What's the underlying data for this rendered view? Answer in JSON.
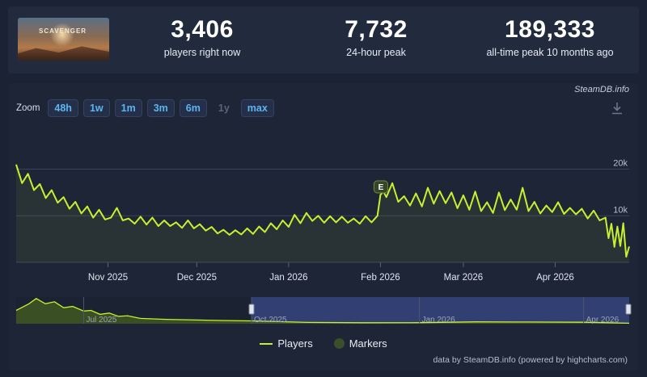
{
  "header": {
    "game_logo_text": "SCAVENGER",
    "stats": [
      {
        "value": "3,406",
        "label": "players right now"
      },
      {
        "value": "7,732",
        "label": "24-hour peak"
      },
      {
        "value": "189,333",
        "label": "all-time peak 10 months ago"
      }
    ]
  },
  "panel": {
    "brand": "SteamDB.info",
    "zoom_label": "Zoom",
    "zoom_buttons": [
      "48h",
      "1w",
      "1m",
      "3m",
      "6m",
      "1y",
      "max"
    ],
    "zoom_disabled": "1y",
    "download_icon": "download-icon",
    "legend": {
      "players": "Players",
      "markers": "Markers"
    },
    "credit": "data by SteamDB.info (powered by highcharts.com)"
  },
  "colors": {
    "series": "#c6f12f",
    "navigator_selection": "#3b4a8a",
    "background": "#1b2233"
  },
  "chart_data": {
    "type": "line",
    "title": "",
    "xlabel": "",
    "ylabel": "",
    "ylim": [
      0,
      22000
    ],
    "y_ticks": [
      {
        "value": 10000,
        "label": "10k"
      },
      {
        "value": 20000,
        "label": "20k"
      }
    ],
    "x_ticks": [
      "Nov 2025",
      "Dec 2025",
      "Jan 2026",
      "Feb 2026",
      "Mar 2026",
      "Apr 2026"
    ],
    "x_tick_dates": [
      "2025-11-01",
      "2025-12-01",
      "2026-01-01",
      "2026-02-01",
      "2026-03-01",
      "2026-04-01"
    ],
    "x_range": [
      "2025-10-01",
      "2026-04-26"
    ],
    "grid": true,
    "marker": {
      "label": "E",
      "date": "2026-02-01"
    },
    "series": [
      {
        "name": "Players",
        "points": [
          [
            "2025-10-01",
            21000
          ],
          [
            "2025-10-03",
            17000
          ],
          [
            "2025-10-05",
            19000
          ],
          [
            "2025-10-07",
            15500
          ],
          [
            "2025-10-09",
            16800
          ],
          [
            "2025-10-11",
            13800
          ],
          [
            "2025-10-13",
            15500
          ],
          [
            "2025-10-15",
            12800
          ],
          [
            "2025-10-17",
            14000
          ],
          [
            "2025-10-19",
            11500
          ],
          [
            "2025-10-21",
            13000
          ],
          [
            "2025-10-23",
            10500
          ],
          [
            "2025-10-25",
            12000
          ],
          [
            "2025-10-27",
            9600
          ],
          [
            "2025-10-29",
            11300
          ],
          [
            "2025-10-31",
            9200
          ],
          [
            "2025-11-02",
            9600
          ],
          [
            "2025-11-04",
            11700
          ],
          [
            "2025-11-06",
            9000
          ],
          [
            "2025-11-08",
            9400
          ],
          [
            "2025-11-10",
            8300
          ],
          [
            "2025-11-12",
            9800
          ],
          [
            "2025-11-14",
            8100
          ],
          [
            "2025-11-16",
            9600
          ],
          [
            "2025-11-18",
            7800
          ],
          [
            "2025-11-20",
            9000
          ],
          [
            "2025-11-22",
            7800
          ],
          [
            "2025-11-24",
            8600
          ],
          [
            "2025-11-26",
            7400
          ],
          [
            "2025-11-28",
            9000
          ],
          [
            "2025-11-30",
            7300
          ],
          [
            "2025-12-02",
            8200
          ],
          [
            "2025-12-04",
            6800
          ],
          [
            "2025-12-06",
            7600
          ],
          [
            "2025-12-08",
            6200
          ],
          [
            "2025-12-10",
            7000
          ],
          [
            "2025-12-12",
            5900
          ],
          [
            "2025-12-14",
            6900
          ],
          [
            "2025-12-16",
            6000
          ],
          [
            "2025-12-18",
            7300
          ],
          [
            "2025-12-20",
            6100
          ],
          [
            "2025-12-22",
            7700
          ],
          [
            "2025-12-24",
            6500
          ],
          [
            "2025-12-26",
            8400
          ],
          [
            "2025-12-28",
            7100
          ],
          [
            "2025-12-30",
            9000
          ],
          [
            "2026-01-01",
            7600
          ],
          [
            "2026-01-03",
            10200
          ],
          [
            "2026-01-05",
            8400
          ],
          [
            "2026-01-07",
            10600
          ],
          [
            "2026-01-09",
            8900
          ],
          [
            "2026-01-11",
            10000
          ],
          [
            "2026-01-13",
            8500
          ],
          [
            "2026-01-15",
            9900
          ],
          [
            "2026-01-17",
            8600
          ],
          [
            "2026-01-19",
            9800
          ],
          [
            "2026-01-21",
            8500
          ],
          [
            "2026-01-23",
            9400
          ],
          [
            "2026-01-25",
            8300
          ],
          [
            "2026-01-27",
            9900
          ],
          [
            "2026-01-29",
            8600
          ],
          [
            "2026-01-31",
            10000
          ],
          [
            "2026-02-01",
            14500
          ],
          [
            "2026-02-02",
            15200
          ],
          [
            "2026-02-03",
            14000
          ],
          [
            "2026-02-05",
            17000
          ],
          [
            "2026-02-07",
            13000
          ],
          [
            "2026-02-09",
            14200
          ],
          [
            "2026-02-11",
            12200
          ],
          [
            "2026-02-13",
            14800
          ],
          [
            "2026-02-15",
            12000
          ],
          [
            "2026-02-17",
            16000
          ],
          [
            "2026-02-19",
            12600
          ],
          [
            "2026-02-21",
            15300
          ],
          [
            "2026-02-23",
            12700
          ],
          [
            "2026-02-25",
            15000
          ],
          [
            "2026-02-27",
            11600
          ],
          [
            "2026-03-01",
            14400
          ],
          [
            "2026-03-03",
            11300
          ],
          [
            "2026-03-05",
            15200
          ],
          [
            "2026-03-07",
            11000
          ],
          [
            "2026-03-09",
            12900
          ],
          [
            "2026-03-11",
            10600
          ],
          [
            "2026-03-13",
            15000
          ],
          [
            "2026-03-15",
            11200
          ],
          [
            "2026-03-17",
            13500
          ],
          [
            "2026-03-19",
            11300
          ],
          [
            "2026-03-21",
            16000
          ],
          [
            "2026-03-23",
            11000
          ],
          [
            "2026-03-25",
            13000
          ],
          [
            "2026-03-27",
            10500
          ],
          [
            "2026-03-29",
            12200
          ],
          [
            "2026-03-31",
            10800
          ],
          [
            "2026-04-02",
            12900
          ],
          [
            "2026-04-04",
            10400
          ],
          [
            "2026-04-06",
            11700
          ],
          [
            "2026-04-08",
            10300
          ],
          [
            "2026-04-10",
            11500
          ],
          [
            "2026-04-12",
            9400
          ],
          [
            "2026-04-14",
            11100
          ],
          [
            "2026-04-16",
            9000
          ],
          [
            "2026-04-18",
            9600
          ],
          [
            "2026-04-19",
            5200
          ],
          [
            "2026-04-20",
            8300
          ],
          [
            "2026-04-21",
            3300
          ],
          [
            "2026-04-22",
            7700
          ],
          [
            "2026-04-23",
            3500
          ],
          [
            "2026-04-24",
            8400
          ],
          [
            "2026-04-25",
            1200
          ],
          [
            "2026-04-26",
            3400
          ]
        ]
      }
    ],
    "navigator": {
      "x_labels": [
        "Jul 2025",
        "Oct 2025",
        "Jan 2026",
        "Apr 2026"
      ],
      "x_label_dates": [
        "2025-07-01",
        "2025-10-01",
        "2026-01-01",
        "2026-04-01"
      ],
      "x_range": [
        "2025-05-25",
        "2026-04-26"
      ],
      "selection": [
        "2025-10-01",
        "2026-04-26"
      ],
      "points": [
        [
          "2025-05-25",
          100000
        ],
        [
          "2025-06-01",
          150000
        ],
        [
          "2025-06-05",
          189333
        ],
        [
          "2025-06-10",
          150000
        ],
        [
          "2025-06-15",
          165000
        ],
        [
          "2025-06-20",
          120000
        ],
        [
          "2025-06-25",
          130000
        ],
        [
          "2025-07-01",
          95000
        ],
        [
          "2025-07-05",
          100000
        ],
        [
          "2025-07-10",
          70000
        ],
        [
          "2025-07-15",
          80000
        ],
        [
          "2025-07-20",
          55000
        ],
        [
          "2025-07-25",
          60000
        ],
        [
          "2025-08-01",
          40000
        ],
        [
          "2025-08-15",
          33000
        ],
        [
          "2025-09-01",
          28000
        ],
        [
          "2025-09-15",
          24000
        ],
        [
          "2025-10-01",
          21000
        ],
        [
          "2025-11-01",
          10000
        ],
        [
          "2025-12-01",
          7000
        ],
        [
          "2026-01-01",
          8000
        ],
        [
          "2026-02-01",
          14000
        ],
        [
          "2026-03-01",
          12500
        ],
        [
          "2026-04-01",
          11000
        ],
        [
          "2026-04-26",
          3400
        ]
      ]
    }
  }
}
